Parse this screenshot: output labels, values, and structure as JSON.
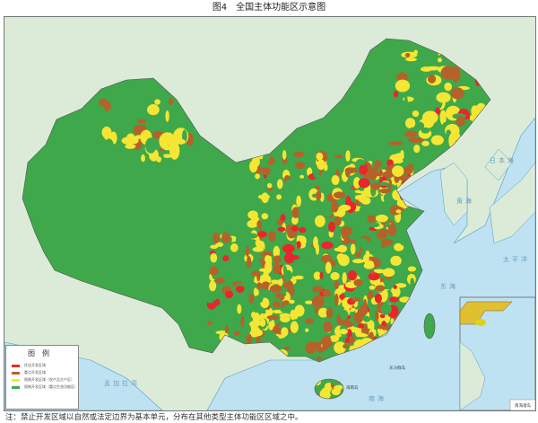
{
  "title": "图4　全国主体功能区示意图",
  "legend": {
    "heading": "图例",
    "items": [
      {
        "label": "优化开发区域",
        "color": "#e8262b"
      },
      {
        "label": "重点开发区域",
        "color": "#b5622a"
      },
      {
        "label": "限制开发区域（农产品主产区）",
        "color": "#f4e633"
      },
      {
        "label": "限制开发区域（重点生态功能区）",
        "color": "#3ea84a"
      }
    ]
  },
  "sea_labels": {
    "yellow_sea": "黄海",
    "east_sea": "东海",
    "sea_japan": "日本海",
    "pacific": "太平洋",
    "south_sea": "南海",
    "bengal": "孟加拉湾",
    "dongsha": "东沙群岛",
    "hainan": "海南岛"
  },
  "inset_label": "南海诸岛",
  "note": "注：禁止开发区域以自然或法定边界为基本单元，分布在其他类型主体功能区区域之中。",
  "colors": {
    "sea": "#bfe2f2",
    "foreign_land": "#dcebd8",
    "border": "#4a9fc8"
  }
}
